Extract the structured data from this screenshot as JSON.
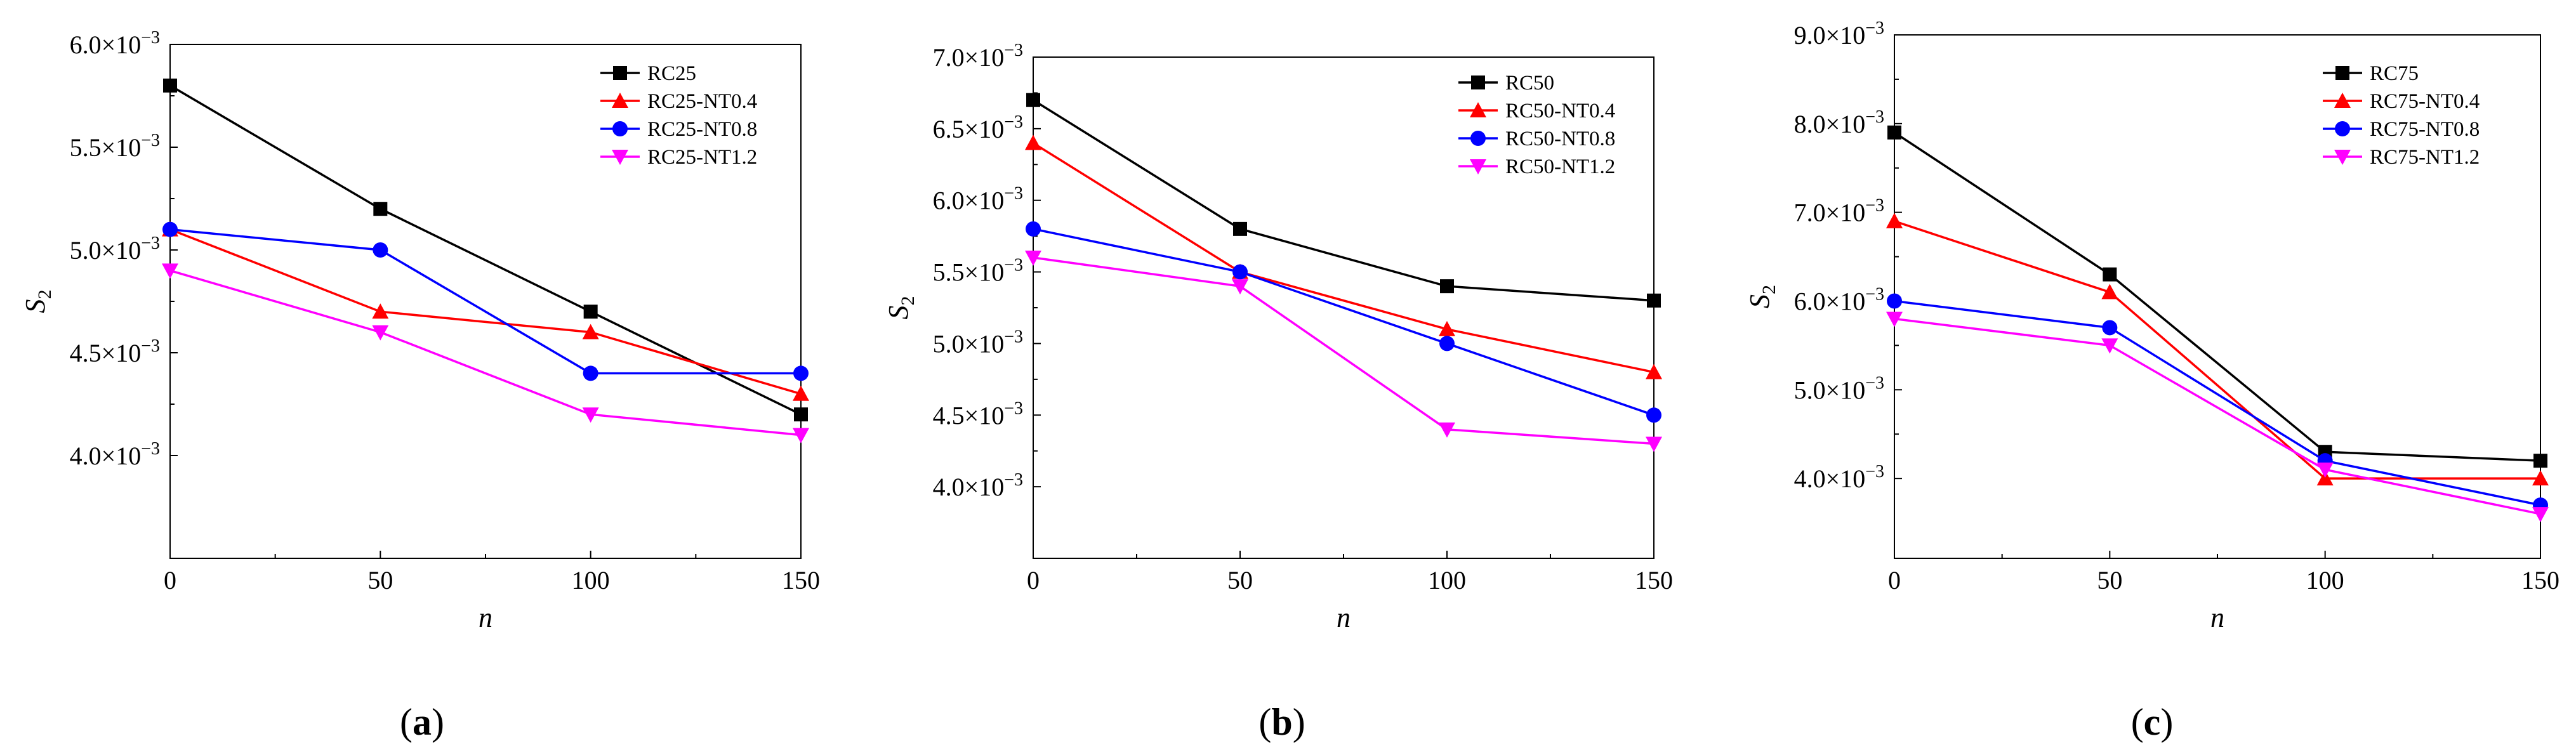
{
  "chart_data": [
    {
      "type": "line",
      "panel_label": "(a)",
      "panel_letter": "a",
      "title": "",
      "xlabel": "n",
      "ylabel": "S",
      "ylabel_sub": "2",
      "x": [
        0,
        50,
        100,
        150
      ],
      "x_ticks": [
        0,
        50,
        100,
        150
      ],
      "x_tick_labels": [
        "0",
        "50",
        "100",
        "150"
      ],
      "xlim": [
        0,
        150
      ],
      "ylim": [
        0.0035,
        0.006
      ],
      "y_ticks": [
        0.004,
        0.0045,
        0.005,
        0.0055,
        0.006
      ],
      "y_tick_mantissas": [
        "4.0",
        "4.5",
        "5.0",
        "5.5",
        "6.0"
      ],
      "y_tick_multiplier": "×10",
      "y_tick_exponent": "−3",
      "grid": false,
      "legend_position": "top-right",
      "series": [
        {
          "name": "RC25",
          "color": "#000000",
          "marker": "square",
          "values": [
            0.0058,
            0.0052,
            0.0047,
            0.0042
          ]
        },
        {
          "name": "RC25-NT0.4",
          "color": "#ff0000",
          "marker": "triangle-up",
          "values": [
            0.0051,
            0.0047,
            0.0046,
            0.0043
          ]
        },
        {
          "name": "RC25-NT0.8",
          "color": "#0000ff",
          "marker": "circle",
          "values": [
            0.0051,
            0.005,
            0.0044,
            0.0044
          ]
        },
        {
          "name": "RC25-NT1.2",
          "color": "#ff00ff",
          "marker": "triangle-down",
          "values": [
            0.0049,
            0.0046,
            0.0042,
            0.0041
          ]
        }
      ]
    },
    {
      "type": "line",
      "panel_label": "(b)",
      "panel_letter": "b",
      "title": "",
      "xlabel": "n",
      "ylabel": "S",
      "ylabel_sub": "2",
      "x": [
        0,
        50,
        100,
        150
      ],
      "x_ticks": [
        0,
        50,
        100,
        150
      ],
      "x_tick_labels": [
        "0",
        "50",
        "100",
        "150"
      ],
      "xlim": [
        0,
        150
      ],
      "ylim": [
        0.0035,
        0.007
      ],
      "y_ticks": [
        0.004,
        0.0045,
        0.005,
        0.0055,
        0.006,
        0.0065,
        0.007
      ],
      "y_tick_mantissas": [
        "4.0",
        "4.5",
        "5.0",
        "5.5",
        "6.0",
        "6.5",
        "7.0"
      ],
      "y_tick_multiplier": "×10",
      "y_tick_exponent": "−3",
      "grid": false,
      "legend_position": "top-right",
      "series": [
        {
          "name": "RC50",
          "color": "#000000",
          "marker": "square",
          "values": [
            0.0067,
            0.0058,
            0.0054,
            0.0053
          ]
        },
        {
          "name": "RC50-NT0.4",
          "color": "#ff0000",
          "marker": "triangle-up",
          "values": [
            0.0064,
            0.0055,
            0.0051,
            0.0048
          ]
        },
        {
          "name": "RC50-NT0.8",
          "color": "#0000ff",
          "marker": "circle",
          "values": [
            0.0058,
            0.0055,
            0.005,
            0.0045
          ]
        },
        {
          "name": "RC50-NT1.2",
          "color": "#ff00ff",
          "marker": "triangle-down",
          "values": [
            0.0056,
            0.0054,
            0.0044,
            0.0043
          ]
        }
      ]
    },
    {
      "type": "line",
      "panel_label": "(c)",
      "panel_letter": "c",
      "title": "",
      "xlabel": "n",
      "ylabel": "S",
      "ylabel_sub": "2",
      "x": [
        0,
        50,
        100,
        150
      ],
      "x_ticks": [
        0,
        50,
        100,
        150
      ],
      "x_tick_labels": [
        "0",
        "50",
        "100",
        "150"
      ],
      "xlim": [
        0,
        150
      ],
      "ylim": [
        0.0031,
        0.009
      ],
      "y_ticks": [
        0.004,
        0.005,
        0.006,
        0.007,
        0.008,
        0.009
      ],
      "y_tick_mantissas": [
        "4.0",
        "5.0",
        "6.0",
        "7.0",
        "8.0",
        "9.0"
      ],
      "y_tick_multiplier": "×10",
      "y_tick_exponent": "−3",
      "grid": false,
      "legend_position": "top-right",
      "series": [
        {
          "name": "RC75",
          "color": "#000000",
          "marker": "square",
          "values": [
            0.0079,
            0.0063,
            0.0043,
            0.0042
          ]
        },
        {
          "name": "RC75-NT0.4",
          "color": "#ff0000",
          "marker": "triangle-up",
          "values": [
            0.0069,
            0.0061,
            0.004,
            0.004
          ]
        },
        {
          "name": "RC75-NT0.8",
          "color": "#0000ff",
          "marker": "circle",
          "values": [
            0.006,
            0.0057,
            0.0042,
            0.0037
          ]
        },
        {
          "name": "RC75-NT1.2",
          "color": "#ff00ff",
          "marker": "triangle-down",
          "values": [
            0.0058,
            0.0055,
            0.0041,
            0.0036
          ]
        }
      ]
    }
  ]
}
